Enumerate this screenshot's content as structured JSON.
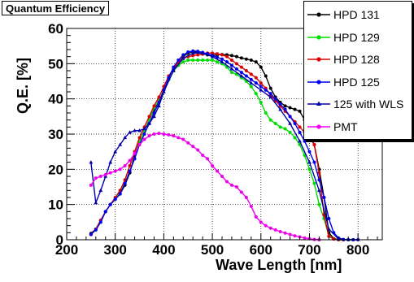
{
  "chart_data": {
    "type": "line",
    "title": "Quantum Efficiency",
    "xlabel": "Wave Length [nm]",
    "ylabel": "Q.E. [%]",
    "xlim": [
      200,
      850
    ],
    "ylim": [
      0,
      60
    ],
    "x_ticks": [
      200,
      300,
      400,
      500,
      600,
      700,
      800
    ],
    "y_ticks": [
      0,
      10,
      20,
      30,
      40,
      50,
      60
    ],
    "grid": true,
    "legend_position": "top-right",
    "series": [
      {
        "name": "HPD 131",
        "color": "#000000",
        "marker": "circle",
        "x": [
          250,
          260,
          270,
          280,
          290,
          300,
          310,
          320,
          330,
          340,
          350,
          360,
          370,
          380,
          390,
          400,
          410,
          420,
          430,
          440,
          450,
          460,
          470,
          480,
          490,
          500,
          510,
          520,
          530,
          540,
          550,
          560,
          570,
          580,
          590,
          600,
          610,
          620,
          630,
          640,
          650,
          660,
          670,
          680,
          690,
          700,
          710,
          720,
          730,
          740,
          750,
          760,
          770,
          780,
          790,
          800
        ],
        "y": [
          1.8,
          3,
          5.5,
          8,
          10,
          11.5,
          13,
          15.5,
          19,
          24,
          28,
          31,
          34,
          37,
          39.5,
          42.5,
          45.5,
          48,
          50.3,
          52,
          53,
          53.4,
          53.2,
          52.8,
          52.5,
          52.4,
          52.5,
          52.6,
          52.5,
          52.3,
          52,
          51.6,
          51.3,
          51,
          50.5,
          49,
          46.5,
          43,
          40.5,
          39,
          38,
          37.5,
          37,
          36.5,
          34,
          30,
          27,
          20,
          12,
          2,
          0.3,
          0.1,
          0,
          0,
          0,
          0
        ]
      },
      {
        "name": "HPD 129",
        "color": "#00dd00",
        "marker": "circle",
        "x": [
          250,
          260,
          270,
          280,
          290,
          300,
          310,
          320,
          330,
          340,
          350,
          360,
          370,
          380,
          390,
          400,
          410,
          420,
          430,
          440,
          450,
          460,
          470,
          480,
          490,
          500,
          510,
          520,
          530,
          540,
          550,
          560,
          570,
          580,
          590,
          600,
          610,
          620,
          630,
          640,
          650,
          660,
          670,
          680,
          690,
          700,
          710,
          720,
          730,
          740,
          750,
          760,
          770,
          780
        ],
        "y": [
          1.5,
          2.8,
          5,
          8,
          10,
          11.5,
          13.5,
          17,
          21,
          25,
          28,
          31,
          34,
          37.5,
          39.5,
          42.5,
          45.5,
          48,
          49.5,
          50.5,
          51,
          51,
          51,
          51,
          51,
          51,
          50.5,
          50,
          49,
          47.5,
          47,
          46,
          45,
          43.5,
          41.5,
          39,
          36,
          34,
          33,
          32,
          31.5,
          30.5,
          29,
          27,
          24,
          20,
          16,
          10,
          6,
          1,
          0.2,
          0,
          0,
          0
        ]
      },
      {
        "name": "HPD 128",
        "color": "#dd0000",
        "marker": "circle",
        "x": [
          250,
          260,
          270,
          280,
          290,
          300,
          310,
          320,
          330,
          340,
          350,
          360,
          370,
          380,
          390,
          400,
          410,
          420,
          430,
          440,
          450,
          460,
          470,
          480,
          490,
          500,
          510,
          520,
          530,
          540,
          550,
          560,
          570,
          580,
          590,
          600,
          610,
          620,
          630,
          640,
          650,
          660,
          670,
          680,
          690,
          700,
          710,
          720,
          730,
          740,
          750,
          760,
          770
        ],
        "y": [
          1.5,
          3,
          5.5,
          8,
          10,
          12,
          14,
          17,
          21,
          25,
          29,
          32,
          35,
          38,
          40.5,
          43.5,
          46.5,
          48.5,
          50.5,
          51.5,
          52,
          52.3,
          52.5,
          52.7,
          53,
          53,
          52.8,
          52.5,
          52,
          51,
          50,
          49,
          48,
          47,
          46,
          44.5,
          43,
          41,
          39.5,
          38,
          36.5,
          35,
          33.5,
          32,
          30.5,
          29,
          27,
          19,
          7,
          1,
          0.2,
          0,
          0
        ]
      },
      {
        "name": "HPD 125",
        "color": "#0000ee",
        "marker": "circle",
        "x": [
          250,
          260,
          270,
          280,
          290,
          300,
          310,
          320,
          330,
          340,
          350,
          360,
          370,
          380,
          390,
          400,
          410,
          420,
          430,
          440,
          450,
          460,
          470,
          480,
          490,
          500,
          510,
          520,
          530,
          540,
          550,
          560,
          570,
          580,
          590,
          600,
          610,
          620,
          630,
          640,
          650,
          660,
          670,
          680,
          690,
          700,
          710,
          720,
          730,
          740,
          750,
          760,
          770,
          780,
          790,
          800
        ],
        "y": [
          1.5,
          2.8,
          5,
          8,
          10,
          11.5,
          13,
          16,
          19.5,
          23,
          27,
          30,
          33,
          36,
          39,
          42.5,
          46,
          49,
          51,
          52.5,
          53.3,
          53.6,
          53.5,
          53.2,
          52.8,
          52.3,
          51.8,
          51.3,
          50.5,
          49.5,
          48.5,
          47.5,
          46.5,
          45.5,
          44.5,
          43.5,
          42.5,
          41.5,
          40,
          38.5,
          37,
          35,
          33,
          30.5,
          28,
          25,
          22,
          17,
          12,
          6,
          2,
          0.5,
          0.1,
          0,
          0,
          0
        ]
      },
      {
        "name": "125 with WLS",
        "color": "#0000aa",
        "marker": "triangle",
        "x": [
          250,
          260,
          270,
          280,
          290,
          300,
          310,
          320,
          330,
          340,
          350,
          360,
          370,
          380,
          390,
          400,
          420,
          440,
          460,
          480,
          500,
          520,
          540,
          560,
          580,
          600,
          620,
          640,
          660,
          680,
          700,
          720,
          740,
          760
        ],
        "y": [
          22,
          10.5,
          14,
          18,
          22,
          25,
          27,
          29,
          30.5,
          31,
          31,
          31.5,
          33,
          35,
          38,
          42,
          48,
          51.5,
          53,
          53,
          52,
          50.5,
          48.5,
          46.5,
          44.5,
          42.5,
          40.5,
          37,
          33,
          28,
          22,
          14,
          3,
          0.2
        ]
      },
      {
        "name": "PMT",
        "color": "#ee00ee",
        "marker": "circle",
        "x": [
          250,
          260,
          270,
          280,
          290,
          300,
          310,
          320,
          330,
          340,
          350,
          360,
          370,
          380,
          390,
          400,
          410,
          420,
          430,
          440,
          450,
          460,
          470,
          480,
          490,
          500,
          510,
          520,
          530,
          540,
          550,
          560,
          570,
          580,
          590,
          600,
          610,
          620,
          630,
          640,
          650,
          660,
          670,
          680,
          690,
          700,
          710,
          720
        ],
        "y": [
          15.5,
          17.5,
          18,
          18.5,
          19,
          19.5,
          20,
          21,
          22.5,
          24.5,
          27,
          28.5,
          29.5,
          30,
          30.2,
          30,
          29.8,
          29.5,
          29,
          28.5,
          27.5,
          26.5,
          25.5,
          24,
          23,
          21,
          19.5,
          18,
          16.5,
          15.5,
          15,
          13.5,
          12,
          9.5,
          6.5,
          5,
          4,
          3.3,
          2.8,
          2.3,
          1.9,
          1.5,
          1.1,
          0.8,
          0.5,
          0.3,
          0.1,
          0
        ]
      }
    ]
  }
}
